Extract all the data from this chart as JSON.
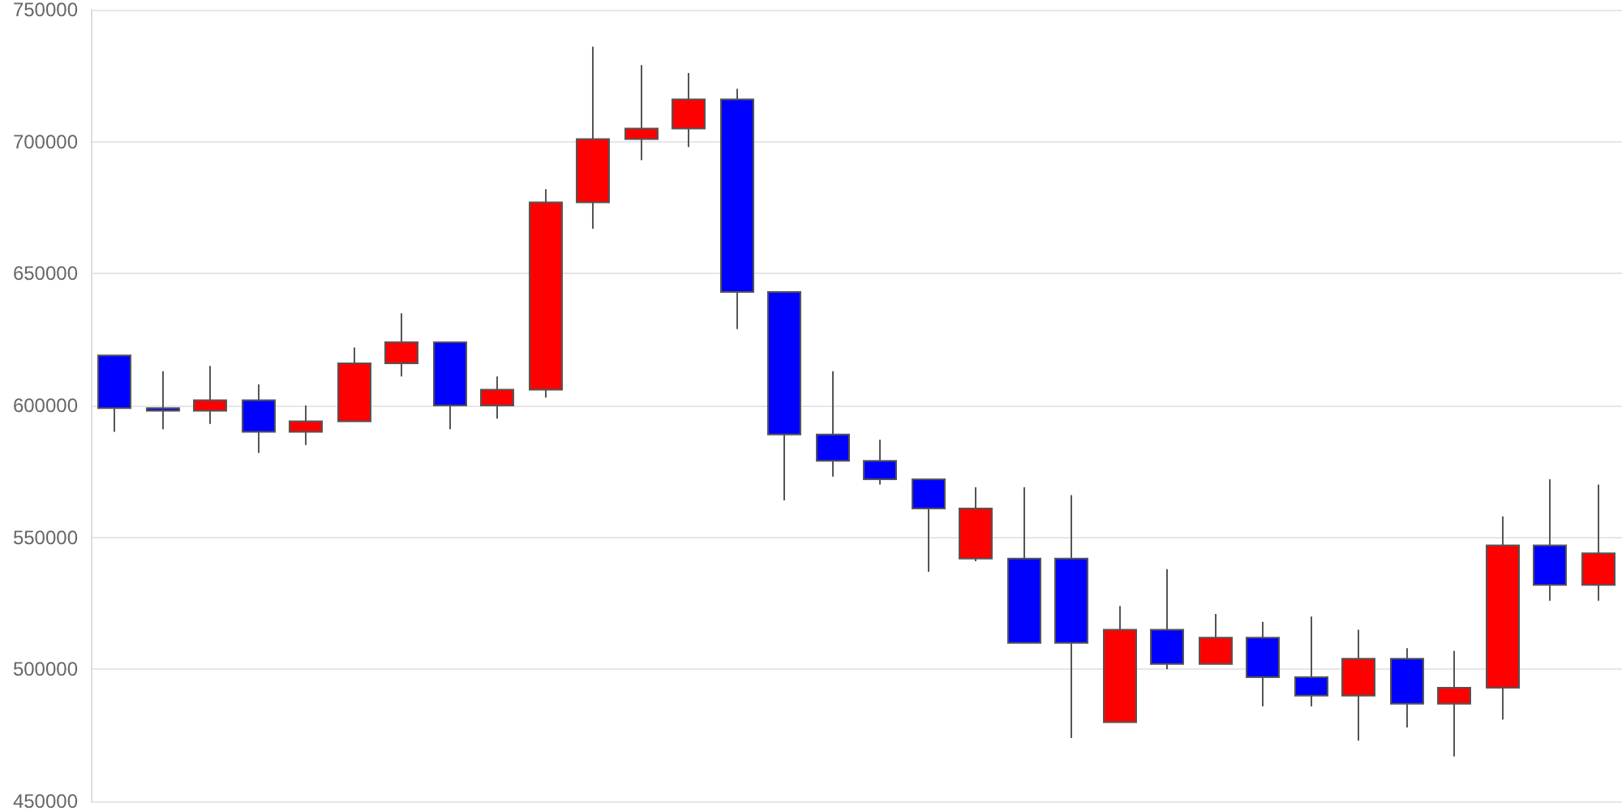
{
  "chart_data": {
    "type": "candlestick",
    "categories": [
      null,
      null,
      null,
      null,
      null,
      null,
      null,
      null,
      null,
      null,
      null,
      null,
      null,
      null,
      null,
      null,
      null,
      null,
      null,
      null,
      null,
      null,
      null,
      null,
      null,
      null,
      null,
      null,
      null,
      null,
      null,
      null
    ],
    "ohlc": [
      [
        619000,
        619000,
        590000,
        599000
      ],
      [
        599000,
        613000,
        591000,
        598000
      ],
      [
        598000,
        615000,
        593000,
        602000
      ],
      [
        602000,
        608000,
        582000,
        590000
      ],
      [
        590000,
        600000,
        585000,
        594000
      ],
      [
        594000,
        622000,
        594000,
        616000
      ],
      [
        616000,
        635000,
        611000,
        624000
      ],
      [
        624000,
        624000,
        591000,
        600000
      ],
      [
        600000,
        611000,
        595000,
        606000
      ],
      [
        606000,
        682000,
        603000,
        677000
      ],
      [
        677000,
        736000,
        667000,
        701000
      ],
      [
        701000,
        729000,
        693000,
        705000
      ],
      [
        705000,
        726000,
        698000,
        716000
      ],
      [
        716000,
        720000,
        629000,
        643000
      ],
      [
        643000,
        643000,
        564000,
        589000
      ],
      [
        589000,
        613000,
        573000,
        579000
      ],
      [
        579000,
        587000,
        570000,
        572000
      ],
      [
        572000,
        572000,
        537000,
        561000
      ],
      [
        542000,
        569000,
        541000,
        561000
      ],
      [
        542000,
        569000,
        510000,
        510000
      ],
      [
        542000,
        566000,
        474000,
        510000
      ],
      [
        480000,
        524000,
        480000,
        515000
      ],
      [
        515000,
        538000,
        500000,
        502000
      ],
      [
        502000,
        521000,
        502000,
        512000
      ],
      [
        512000,
        518000,
        486000,
        497000
      ],
      [
        497000,
        520000,
        486000,
        490000
      ],
      [
        490000,
        515000,
        473000,
        504000
      ],
      [
        504000,
        508000,
        478000,
        487000
      ],
      [
        487000,
        507000,
        467000,
        493000
      ],
      [
        493000,
        558000,
        481000,
        547000
      ],
      [
        547000,
        572000,
        526000,
        532000
      ],
      [
        532000,
        570000,
        526000,
        544000
      ]
    ],
    "colors": [
      "#0000ff",
      "#0000ff",
      "#ff0000",
      "#0000ff",
      "#ff0000",
      "#ff0000",
      "#ff0000",
      "#0000ff",
      "#ff0000",
      "#ff0000",
      "#ff0000",
      "#ff0000",
      "#ff0000",
      "#0000ff",
      "#0000ff",
      "#0000ff",
      "#0000ff",
      "#0000ff",
      "#ff0000",
      "#0000ff",
      "#0000ff",
      "#ff0000",
      "#0000ff",
      "#ff0000",
      "#0000ff",
      "#0000ff",
      "#ff0000",
      "#0000ff",
      "#ff0000",
      "#ff0000",
      "#0000ff",
      "#ff0000"
    ],
    "ylim": [
      450000,
      750000
    ],
    "yticks": [
      450000,
      500000,
      550000,
      600000,
      650000,
      700000,
      750000
    ],
    "grid": "y",
    "tick_labels": "y"
  }
}
